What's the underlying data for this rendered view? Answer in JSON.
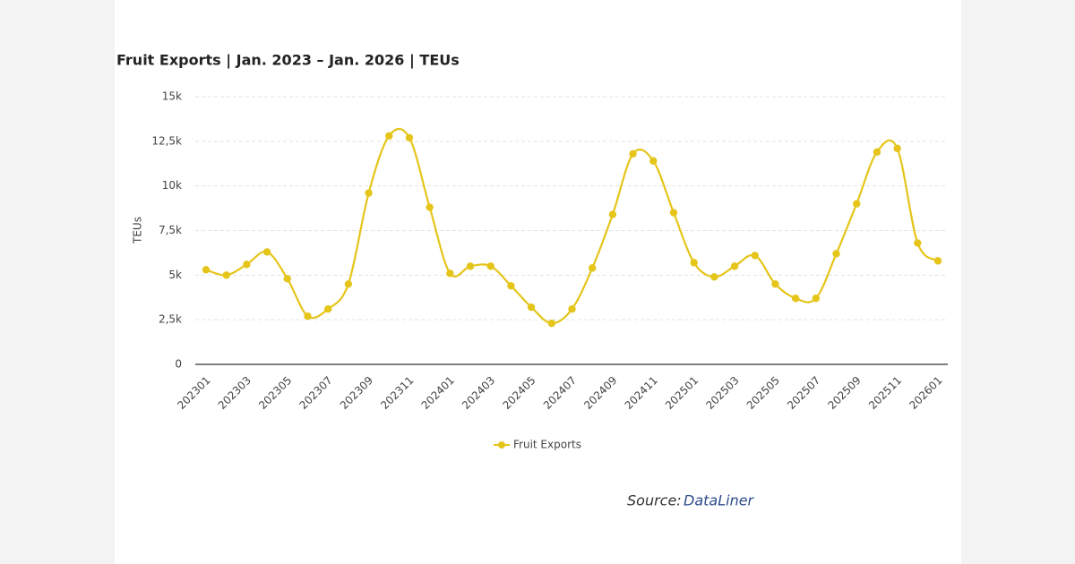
{
  "chart_data": {
    "type": "line",
    "title": "Fruit Exports | Jan. 2023 – Jan. 2026 | TEUs",
    "y_label": "TEUs",
    "categories": [
      "202301",
      null,
      "202303",
      null,
      "202305",
      null,
      "202307",
      null,
      "202309",
      null,
      "202311",
      null,
      "202401",
      null,
      "202403",
      null,
      "202405",
      null,
      "202407",
      null,
      "202409",
      null,
      "202411",
      null,
      "202501",
      null,
      "202503",
      null,
      "202505",
      null,
      "202507",
      null,
      "202509",
      null,
      "202511",
      null,
      "202601"
    ],
    "series": [
      {
        "name": "Fruit Exports",
        "color": "#e5c51a",
        "values": [
          5300,
          5000,
          5600,
          6300,
          4800,
          2700,
          3100,
          4500,
          9600,
          12800,
          12700,
          8800,
          5100,
          5500,
          5500,
          4400,
          3200,
          2300,
          3100,
          5400,
          8400,
          11800,
          11400,
          8500,
          5700,
          4900,
          5500,
          6100,
          4500,
          3700,
          3700,
          6200,
          9000,
          11900,
          12100,
          6800,
          5800
        ]
      }
    ],
    "ylim": [
      0,
      15000
    ],
    "yticks": [
      0,
      {
        "value": 2500,
        "label": "2,5k"
      },
      {
        "value": 5000,
        "label": "5k"
      },
      {
        "value": 7500,
        "label": "7,5k"
      },
      {
        "value": 10000,
        "label": "10k"
      },
      {
        "value": 12500,
        "label": "12,5k"
      },
      {
        "value": 15000,
        "label": "15k"
      }
    ],
    "grid": true,
    "legend": "bottom",
    "source": {
      "label": "Source:",
      "name": "DataLiner"
    }
  }
}
